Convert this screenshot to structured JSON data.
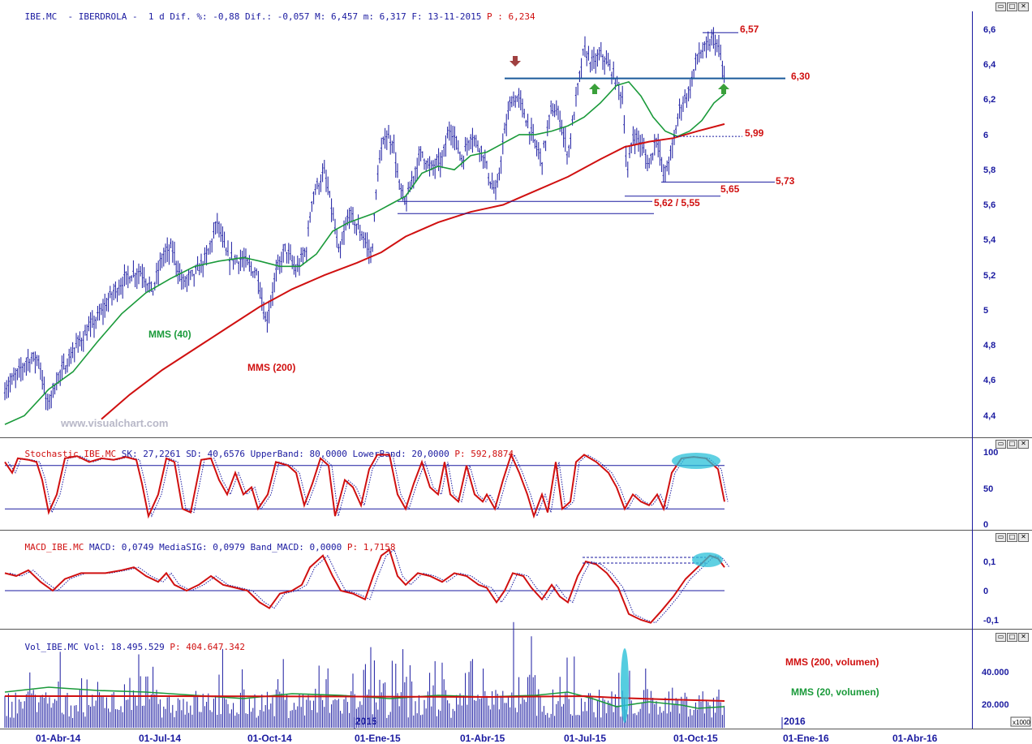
{
  "panels": {
    "price": {
      "header": {
        "symbol": "IBE.MC  - IBERDROLA -  1 d",
        "stats": "Dif. %: -0,88 Dif.: -0,057 M: 6,457 m: 6,317 F: 13-11-2015",
        "last_label": "P : 6,234"
      },
      "y_ticks": [
        "6,6",
        "6,4",
        "6,2",
        "6",
        "5,8",
        "5,6",
        "5,4",
        "5,2",
        "5",
        "4,8",
        "4,6",
        "4,4"
      ],
      "annotations": {
        "ma40": "MMS (40)",
        "ma200": "MMS (200)",
        "lvl_657": "6,57",
        "lvl_630": "6,30",
        "lvl_599": "5,99",
        "lvl_573": "5,73",
        "lvl_565": "5,65",
        "lvl_562_555": "5,62 / 5,55",
        "watermark": "www.visualchart.com"
      },
      "colors": {
        "bars": "#1a1aa0",
        "ma40": "#1a9a3a",
        "ma200": "#d01010",
        "arrow_down": "#a04040",
        "arrow_up": "#3aa03a"
      }
    },
    "stochastic": {
      "header": {
        "name": "Stochastic_IBE.MC",
        "stats": "SK: 27,2261 SD: 40,6576 UpperBand: 80,0000 LowerBand: 20,0000",
        "last_label": "P: 592,8874"
      },
      "y_ticks": [
        "100",
        "50",
        "0"
      ]
    },
    "macd": {
      "header": {
        "name": "MACD_IBE.MC",
        "stats": "MACD: 0,0749 MediaSIG: 0,0979 Band_MACD: 0,0000",
        "last_label": "P: 1,7158"
      },
      "y_ticks": [
        "0,1",
        "0",
        "-0,1"
      ]
    },
    "volume": {
      "header": {
        "name": "Vol_IBE.MC",
        "stats": "Vol: 18.495.529",
        "last_label": "P: 404.647.342"
      },
      "y_ticks": [
        "40.000",
        "20.000"
      ],
      "scale_label": "x1000",
      "annotations": {
        "ma200": "MMS (200, volumen)",
        "ma20": "MMS (20, volumen)",
        "year_2015": "2015",
        "year_2016": "2016"
      }
    }
  },
  "x_axis": {
    "labels": [
      "01-Abr-14",
      "01-Jul-14",
      "01-Oct-14",
      "01-Ene-15",
      "01-Abr-15",
      "01-Jul-15",
      "01-Oct-15",
      "01-Ene-16",
      "01-Abr-16"
    ]
  },
  "window_buttons": {
    "minimize": "▭",
    "maximize": "□",
    "close": "✕"
  }
}
